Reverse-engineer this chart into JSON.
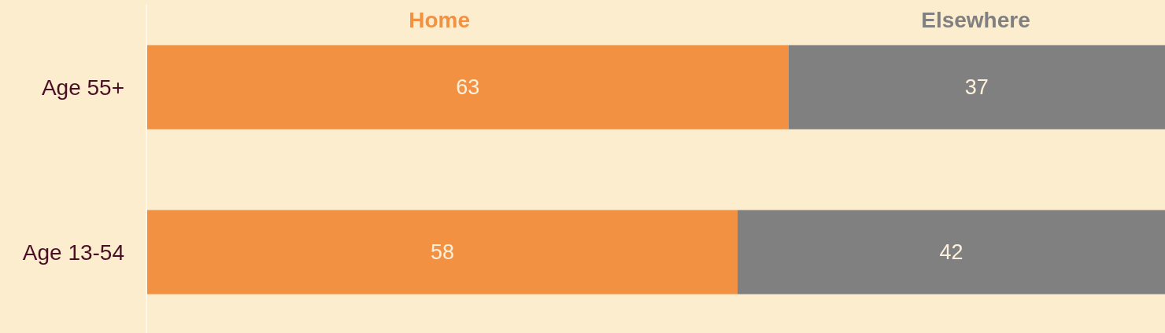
{
  "chart_data": {
    "type": "bar",
    "orientation": "horizontal",
    "stacked": true,
    "categories": [
      "Age 55+",
      "Age 13-54"
    ],
    "series": [
      {
        "name": "Home",
        "color": "#f39143",
        "values": [
          63,
          58
        ]
      },
      {
        "name": "Elsewhere",
        "color": "#808080",
        "values": [
          37,
          42
        ]
      }
    ],
    "xlim": [
      0,
      100
    ],
    "tick_labels": "y",
    "data_labels": true,
    "legend": "top"
  }
}
